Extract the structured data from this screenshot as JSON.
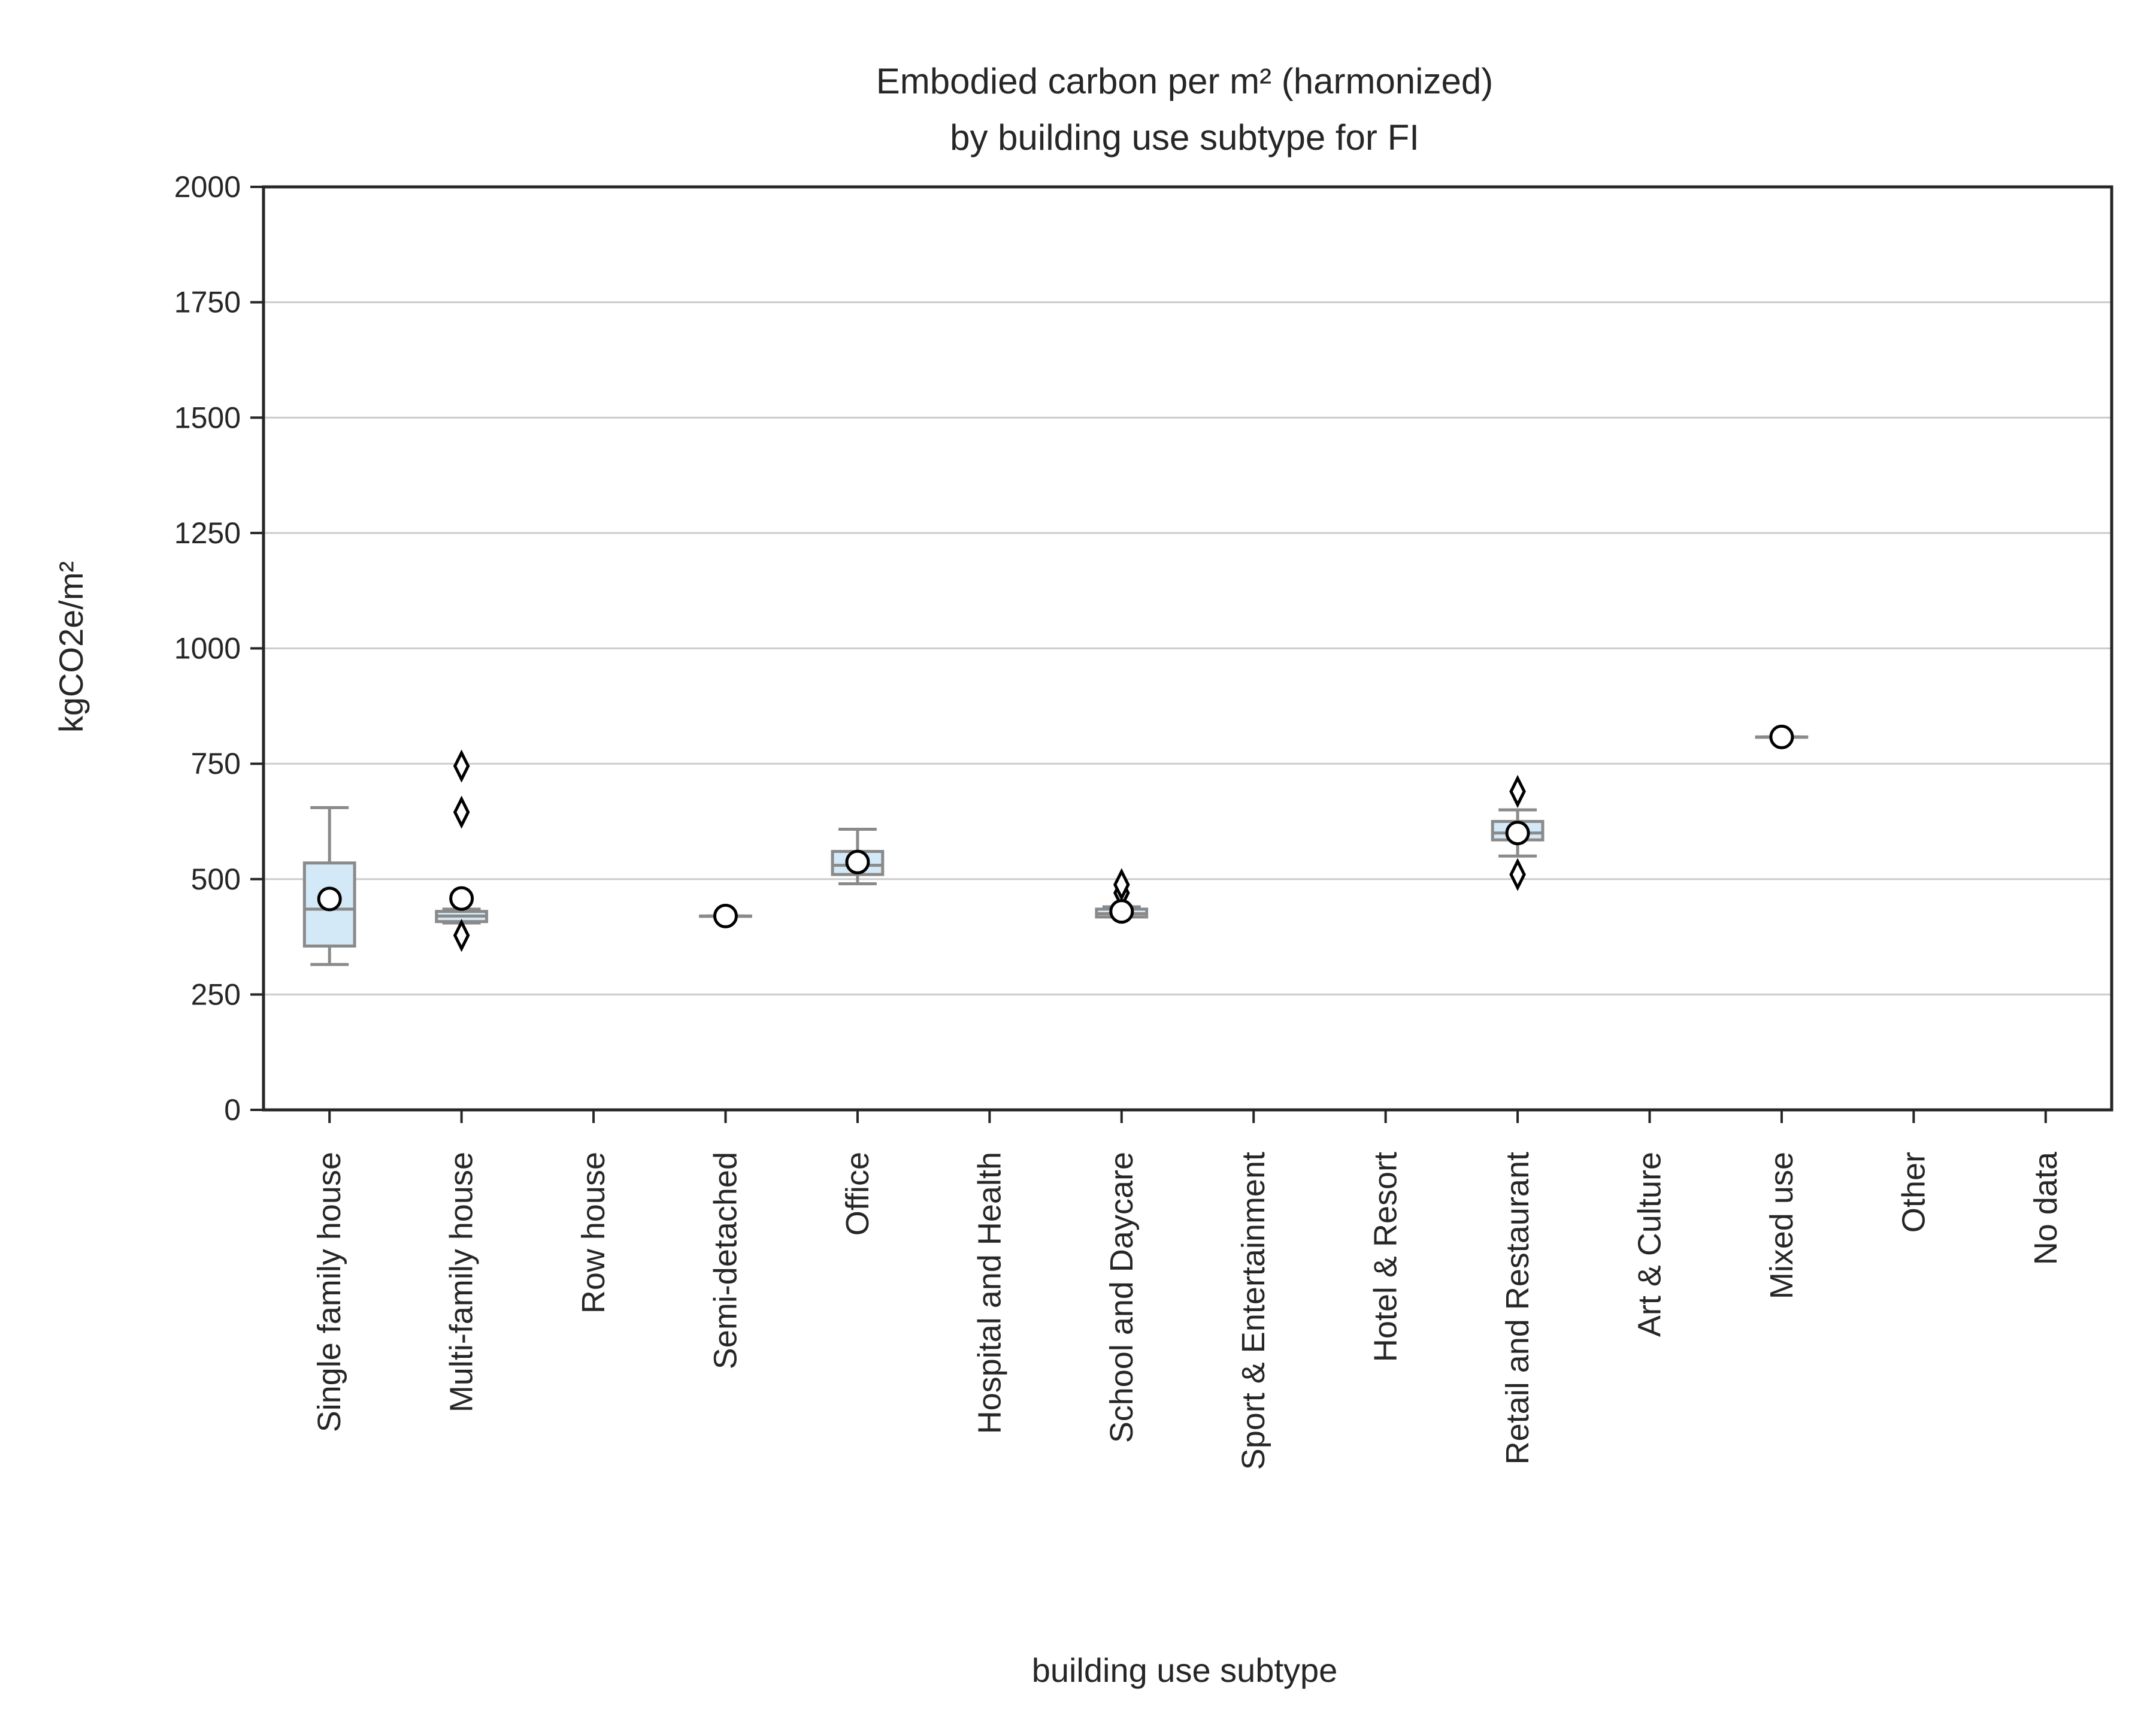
{
  "chart_data": {
    "type": "box",
    "title": [
      "Embodied carbon per m² (harmonized)",
      "by building use subtype for FI"
    ],
    "xlabel": "building use subtype",
    "ylabel": "kgCO2e/m²",
    "ylim": [
      0,
      2000
    ],
    "yticks": [
      0,
      250,
      500,
      750,
      1000,
      1250,
      1500,
      1750,
      2000
    ],
    "grid": "horizontal",
    "colors": {
      "box_fill": "#d4e9f7",
      "box_edge": "#8a8a8a",
      "grid": "#cccccc",
      "axis": "#262626",
      "mean_marker_fill": "#ffffff",
      "mean_marker_edge": "#000000",
      "outlier_fill": "#ffffff",
      "outlier_edge": "#000000"
    },
    "categories": [
      "Single family house",
      "Multi-family house",
      "Row house",
      "Semi-detached",
      "Office",
      "Hospital and Health",
      "School and Daycare",
      "Sport & Entertainment",
      "Hotel & Resort",
      "Retail and Restaurant",
      "Art & Culture",
      "Mixed use",
      "Other",
      "No data"
    ],
    "boxes": [
      {
        "category": "Single family house",
        "whislo": 315,
        "q1": 355,
        "med": 435,
        "q3": 535,
        "whishi": 655,
        "mean": 457,
        "fliers": []
      },
      {
        "category": "Multi-family house",
        "whislo": 405,
        "q1": 408,
        "med": 420,
        "q3": 430,
        "whishi": 435,
        "mean": 458,
        "fliers": [
          378,
          645,
          745
        ]
      },
      {
        "category": "Semi-detached",
        "whislo": 420,
        "q1": 420,
        "med": 420,
        "q3": 420,
        "whishi": 420,
        "mean": 420,
        "fliers": []
      },
      {
        "category": "Office",
        "whislo": 490,
        "q1": 510,
        "med": 530,
        "q3": 560,
        "whishi": 608,
        "mean": 537,
        "fliers": []
      },
      {
        "category": "School and Daycare",
        "whislo": 418,
        "q1": 418,
        "med": 425,
        "q3": 435,
        "whishi": 440,
        "mean": 430,
        "fliers": [
          470,
          488
        ]
      },
      {
        "category": "Retail and Restaurant",
        "whislo": 550,
        "q1": 585,
        "med": 600,
        "q3": 625,
        "whishi": 650,
        "mean": 600,
        "fliers": [
          510,
          690
        ]
      },
      {
        "category": "Mixed use",
        "whislo": 808,
        "q1": 808,
        "med": 808,
        "q3": 808,
        "whishi": 808,
        "mean": 808,
        "fliers": []
      }
    ]
  }
}
